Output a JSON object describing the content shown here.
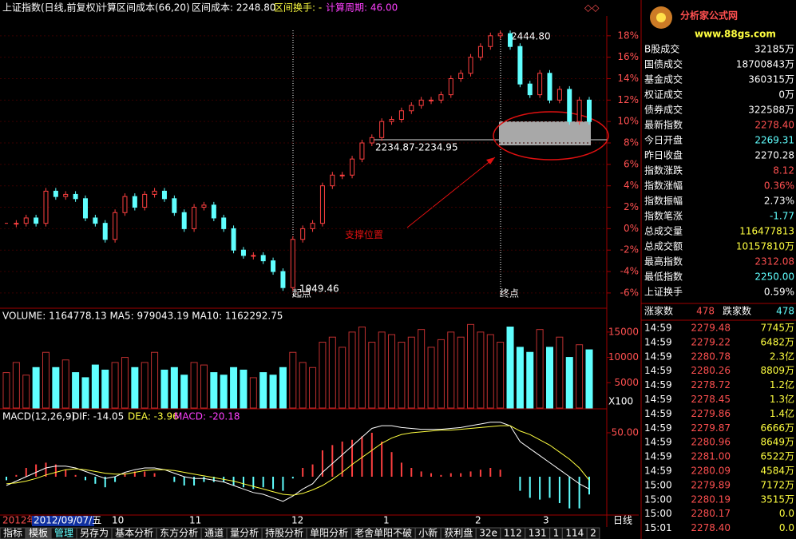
{
  "header": {
    "name": "上证指数(日线,前复权)",
    "calc": "计算区间成本(66,20)",
    "cost_label": "区间成本: 2248.80",
    "turnover_label": "区间换手: -",
    "period_label": "计算周期: 46.00"
  },
  "price": {
    "ylim": [
      -7.2,
      19.7
    ],
    "yticks": [
      {
        "value": 18,
        "label": "18%"
      },
      {
        "value": 16,
        "label": "16%"
      },
      {
        "value": 14,
        "label": "14%"
      },
      {
        "value": 12,
        "label": "12%"
      },
      {
        "value": 10,
        "label": "10%"
      },
      {
        "value": 8,
        "label": "8%"
      },
      {
        "value": 6,
        "label": "6%"
      },
      {
        "value": 4,
        "label": "4%"
      },
      {
        "value": 2,
        "label": "2%"
      },
      {
        "value": 0,
        "label": "0%"
      },
      {
        "value": -2,
        "label": "-2%"
      },
      {
        "value": -4,
        "label": "-4%"
      },
      {
        "value": -6,
        "label": "-6%"
      }
    ],
    "closes": [
      0.5,
      0.5,
      1,
      0.5,
      3.5,
      3,
      3.2,
      2.8,
      1,
      0.5,
      -1,
      1.5,
      3,
      2,
      3.2,
      3.5,
      2.8,
      1.5,
      0,
      2,
      2.2,
      1,
      0,
      -2,
      -2.5,
      -2.5,
      -3,
      -4,
      -5.5,
      -1,
      0,
      0.5,
      4,
      5,
      5,
      6.5,
      8,
      8.5,
      10,
      10.2,
      11,
      11.5,
      12,
      12,
      12.5,
      14,
      14.5,
      16,
      17,
      18,
      18.2,
      17,
      13.5,
      12.5,
      14.5,
      12,
      13,
      10,
      12,
      10
    ],
    "high_label": "2444.80",
    "low_label": "1949.46",
    "start_label": "起点",
    "end_label": "终点",
    "range_label": "2234.87-2234.95",
    "support_label": "支撑位置"
  },
  "volume": {
    "header": "VOLUME: 1164778.13  MA5: 979043.19  MA10: 1162292.75",
    "ylim": [
      0,
      17500
    ],
    "yticks": [
      5000,
      10000,
      15000
    ],
    "unit": "X100",
    "values": [
      7000,
      9000,
      6500,
      8000,
      11000,
      8000,
      9500,
      7000,
      6000,
      8500,
      7500,
      9000,
      10000,
      8000,
      9000,
      11000,
      7500,
      8000,
      6500,
      9000,
      8500,
      7000,
      6500,
      8000,
      7500,
      6000,
      7000,
      6500,
      8000,
      11000,
      9000,
      8000,
      13000,
      14000,
      12000,
      15000,
      16000,
      13000,
      15000,
      14500,
      13000,
      14000,
      15500,
      12000,
      13500,
      15000,
      14000,
      16500,
      15000,
      14500,
      13000,
      16000,
      12000,
      11000,
      15500,
      12000,
      14000,
      10000,
      12500,
      11500
    ]
  },
  "macd": {
    "title": "MACD(12,26,9)",
    "dif_label": "DIF: -14.05",
    "dea_label": "DEA: -3.96",
    "macd_label": "MACD: -20.18",
    "ylim": [
      -43.6,
      74.5
    ],
    "yticks": [
      {
        "value": 50,
        "label": "50.00"
      }
    ],
    "dif": [
      -10,
      -5,
      0,
      5,
      10,
      12,
      12,
      10,
      6,
      2,
      -2,
      0,
      5,
      8,
      10,
      10,
      8,
      4,
      0,
      -2,
      -2,
      -4,
      -6,
      -10,
      -14,
      -18,
      -20,
      -24,
      -28,
      -22,
      -14,
      -8,
      5,
      15,
      25,
      35,
      45,
      55,
      58,
      58,
      56,
      55,
      54,
      54,
      54,
      55,
      56,
      58,
      60,
      62,
      62,
      58,
      40,
      32,
      24,
      16,
      8,
      0,
      -8,
      -14.05
    ],
    "dea": [
      -8,
      -7,
      -5,
      -2,
      2,
      5,
      8,
      9,
      8,
      6,
      4,
      3,
      3,
      5,
      7,
      8,
      8,
      7,
      5,
      3,
      1,
      -1,
      -3,
      -5,
      -8,
      -11,
      -14,
      -17,
      -20,
      -21,
      -19,
      -15,
      -10,
      -3,
      5,
      14,
      22,
      30,
      38,
      44,
      48,
      50,
      51,
      52,
      53,
      53,
      54,
      55,
      56,
      57,
      58,
      58,
      52,
      48,
      42,
      36,
      28,
      20,
      10,
      -3.96
    ],
    "bars": [
      -4,
      2,
      10,
      14,
      16,
      14,
      8,
      2,
      -4,
      -8,
      -12,
      -6,
      4,
      6,
      6,
      4,
      0,
      -6,
      -10,
      -10,
      -6,
      -6,
      -6,
      -10,
      -12,
      -14,
      -12,
      -14,
      -16,
      -2,
      10,
      14,
      30,
      36,
      40,
      42,
      46,
      50,
      40,
      28,
      16,
      10,
      6,
      4,
      2,
      4,
      4,
      6,
      8,
      10,
      8,
      0,
      -16,
      -24,
      -26,
      -24,
      -30,
      -36,
      -36,
      -20.18
    ]
  },
  "dates": [
    "2012年",
    "2012/09/07/五",
    "10",
    "11",
    "12",
    "1",
    "2",
    "3"
  ],
  "period": "日线",
  "tabs": [
    "指标",
    "模板",
    "管理",
    "另存为",
    "基本分析",
    "东方分析",
    "通道",
    "量分析",
    "持股分析",
    "单阳分析",
    "老舍单阳不破",
    "小新",
    "获利盘",
    "32e",
    "112",
    "131",
    "1",
    "114",
    "2"
  ],
  "logo": {
    "title": "分析家公式网",
    "url": "www.88gs.com"
  },
  "stats": [
    {
      "label": "B股成交",
      "value": "32185万",
      "color": "#fff"
    },
    {
      "label": "国债成交",
      "value": "18700843万",
      "color": "#fff"
    },
    {
      "label": "基金成交",
      "value": "360315万",
      "color": "#fff"
    },
    {
      "label": "权证成交",
      "value": "0万",
      "color": "#fff"
    },
    {
      "label": "债券成交",
      "value": "322588万",
      "color": "#fff"
    },
    {
      "label": "最新指数",
      "value": "2278.40",
      "color": "#ff5050"
    },
    {
      "label": "今日开盘",
      "value": "2269.31",
      "color": "#60ffff"
    },
    {
      "label": "昨日收盘",
      "value": "2270.28",
      "color": "#fff"
    },
    {
      "label": "指数涨跌",
      "value": "8.12",
      "color": "#ff5050"
    },
    {
      "label": "指数涨幅",
      "value": "0.36%",
      "color": "#ff5050"
    },
    {
      "label": "指数振幅",
      "value": "2.73%",
      "color": "#fff"
    },
    {
      "label": "指数笔涨",
      "value": "-1.77",
      "color": "#60ffff"
    },
    {
      "label": "总成交量",
      "value": "116477813",
      "color": "#ffff40"
    },
    {
      "label": "总成交额",
      "value": "10157810万",
      "color": "#ffff40"
    },
    {
      "label": "最高指数",
      "value": "2312.08",
      "color": "#ff5050"
    },
    {
      "label": "最低指数",
      "value": "2250.00",
      "color": "#60ffff"
    },
    {
      "label": "上证换手",
      "value": "0.59%",
      "color": "#fff"
    }
  ],
  "breadth": {
    "up_label": "涨家数",
    "up": "478",
    "down_label": "跌家数",
    "down": "478"
  },
  "ticks": [
    [
      "14:59",
      "2279.48",
      "7745万"
    ],
    [
      "14:59",
      "2279.22",
      "6482万"
    ],
    [
      "14:59",
      "2280.78",
      "2.3亿"
    ],
    [
      "14:59",
      "2280.26",
      "8809万"
    ],
    [
      "14:59",
      "2278.72",
      "1.2亿"
    ],
    [
      "14:59",
      "2278.45",
      "1.3亿"
    ],
    [
      "14:59",
      "2279.86",
      "1.4亿"
    ],
    [
      "14:59",
      "2279.87",
      "6666万"
    ],
    [
      "14:59",
      "2280.96",
      "8649万"
    ],
    [
      "14:59",
      "2281.00",
      "6522万"
    ],
    [
      "14:59",
      "2280.09",
      "4584万"
    ],
    [
      "15:00",
      "2279.89",
      "7172万"
    ],
    [
      "15:00",
      "2280.19",
      "3515万"
    ],
    [
      "15:00",
      "2280.17",
      "0.0"
    ],
    [
      "15:01",
      "2278.40",
      "0.0"
    ]
  ]
}
